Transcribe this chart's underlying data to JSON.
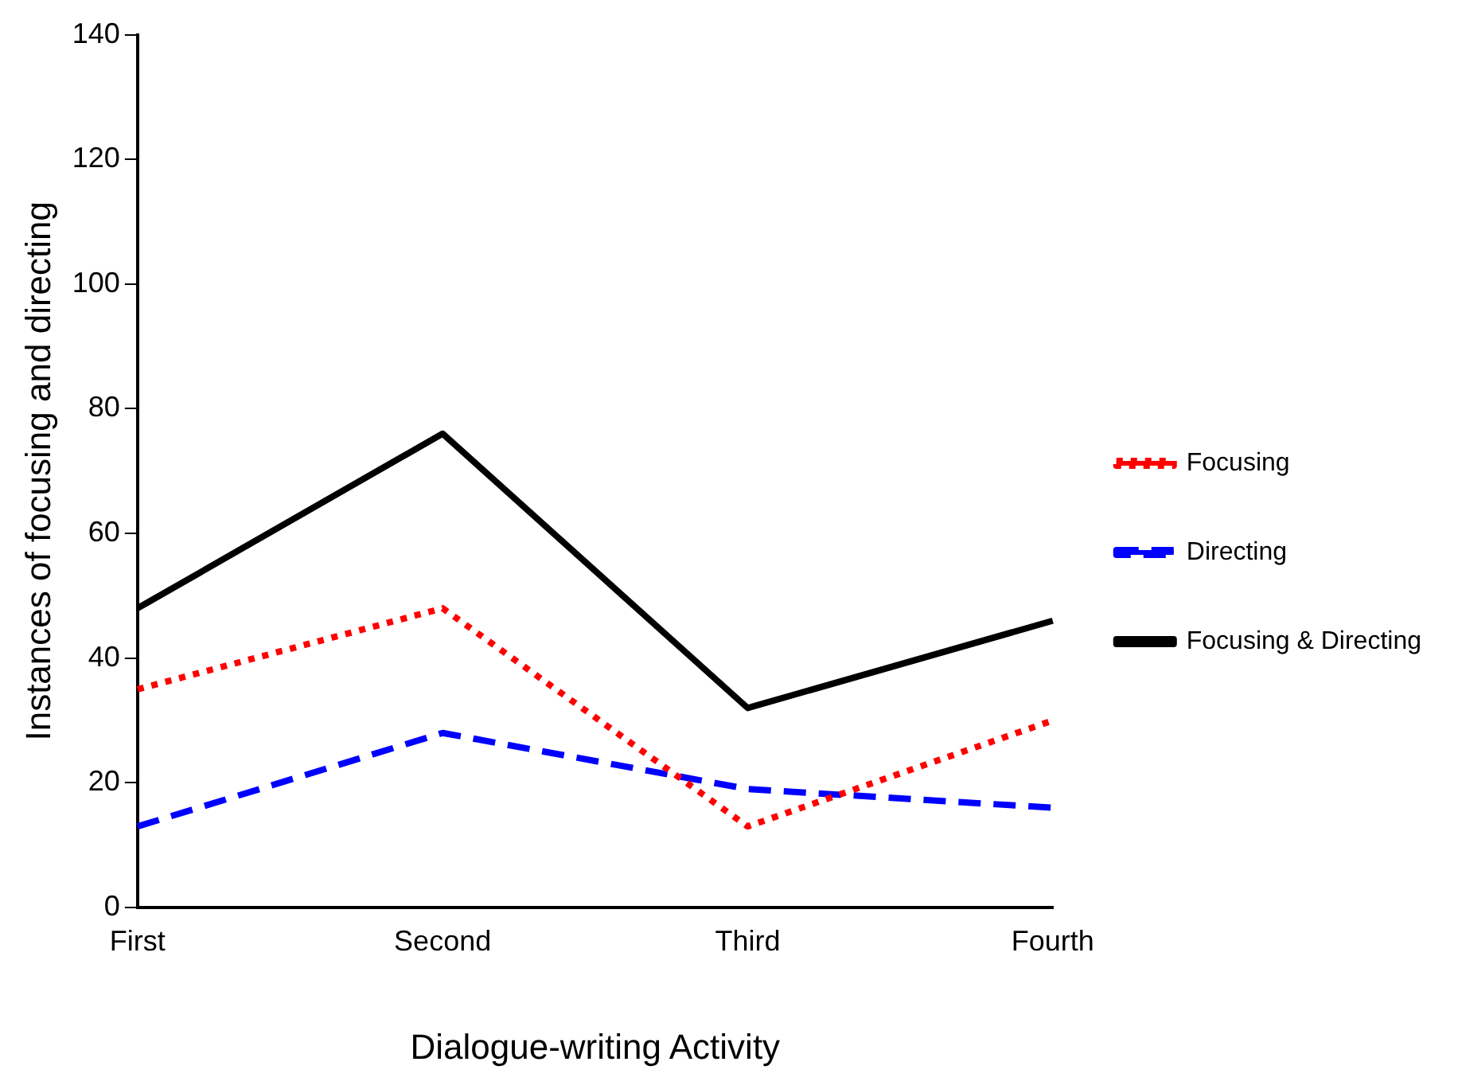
{
  "chart_data": {
    "type": "line",
    "xlabel": "Dialogue-writing Activity",
    "ylabel": "Instances of focusing and directing",
    "categories": [
      "First",
      "Second",
      "Third",
      "Fourth"
    ],
    "series": [
      {
        "name": "Focusing",
        "color": "#ff0000",
        "values": [
          35,
          48,
          13,
          30
        ],
        "line_style": "dotted"
      },
      {
        "name": "Directing",
        "color": "#0000ff",
        "values": [
          13,
          28,
          19,
          16
        ],
        "line_style": "dashed"
      },
      {
        "name": "Focusing & Directing",
        "color": "#000000",
        "values": [
          48,
          76,
          32,
          46
        ],
        "line_style": "solid"
      }
    ],
    "ylim": [
      0,
      140
    ],
    "yticks": [
      0,
      20,
      40,
      60,
      80,
      100,
      120,
      140
    ],
    "grid": false,
    "legend": "right",
    "marker": "none"
  }
}
